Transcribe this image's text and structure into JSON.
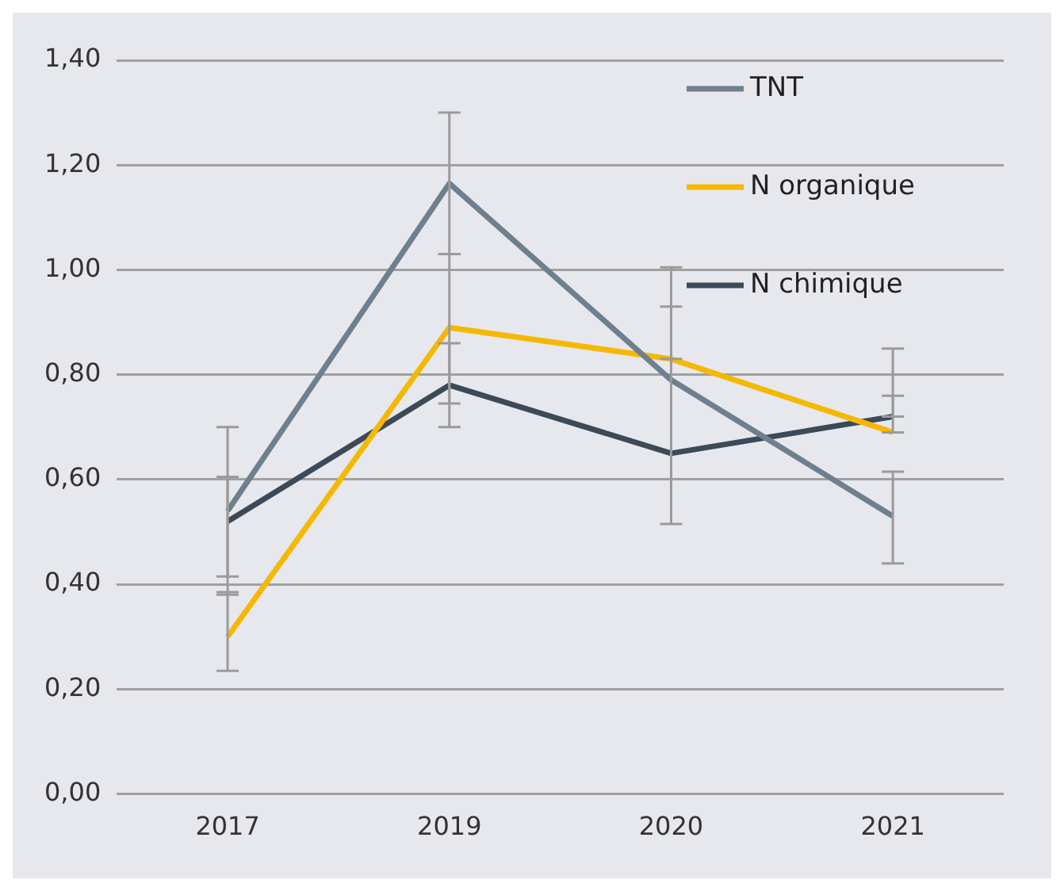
{
  "chart_data": {
    "type": "line",
    "categories": [
      "2017",
      "2019",
      "2020",
      "2021"
    ],
    "series": [
      {
        "name": "TNT",
        "color": "#6e7f8d",
        "values": [
          0.54,
          1.165,
          0.79,
          0.53
        ],
        "errors": [
          [
            0.38,
            0.7
          ],
          [
            1.03,
            1.3
          ],
          [
            0.515,
            1.005
          ],
          [
            0.44,
            0.615
          ]
        ]
      },
      {
        "name": "N organique",
        "color": "#f5b800",
        "values": [
          0.3,
          0.89,
          0.83,
          0.69
        ],
        "errors": [
          [
            0.235,
            0.385
          ],
          [
            0.745,
            1.03
          ],
          [
            0.83,
            0.93
          ],
          [
            0.69,
            0.85
          ]
        ]
      },
      {
        "name": "N chimique",
        "color": "#3c4a58",
        "values": [
          0.52,
          0.78,
          0.65,
          0.72
        ],
        "errors": [
          [
            0.415,
            0.605
          ],
          [
            0.7,
            0.86
          ],
          null,
          [
            0.72,
            0.76
          ]
        ]
      }
    ],
    "ylim": [
      0,
      1.4
    ],
    "yticks": [
      {
        "value": 0,
        "label": "0,00"
      },
      {
        "value": 0.2,
        "label": "0,20"
      },
      {
        "value": 0.4,
        "label": "0,40"
      },
      {
        "value": 0.6,
        "label": "0,60"
      },
      {
        "value": 0.8,
        "label": "0,80"
      },
      {
        "value": 1.0,
        "label": "1,00"
      },
      {
        "value": 1.2,
        "label": "1,20"
      },
      {
        "value": 1.4,
        "label": "1,40"
      }
    ],
    "grid": "y",
    "legend": "top right",
    "marker": "none",
    "line_style": "solid"
  }
}
